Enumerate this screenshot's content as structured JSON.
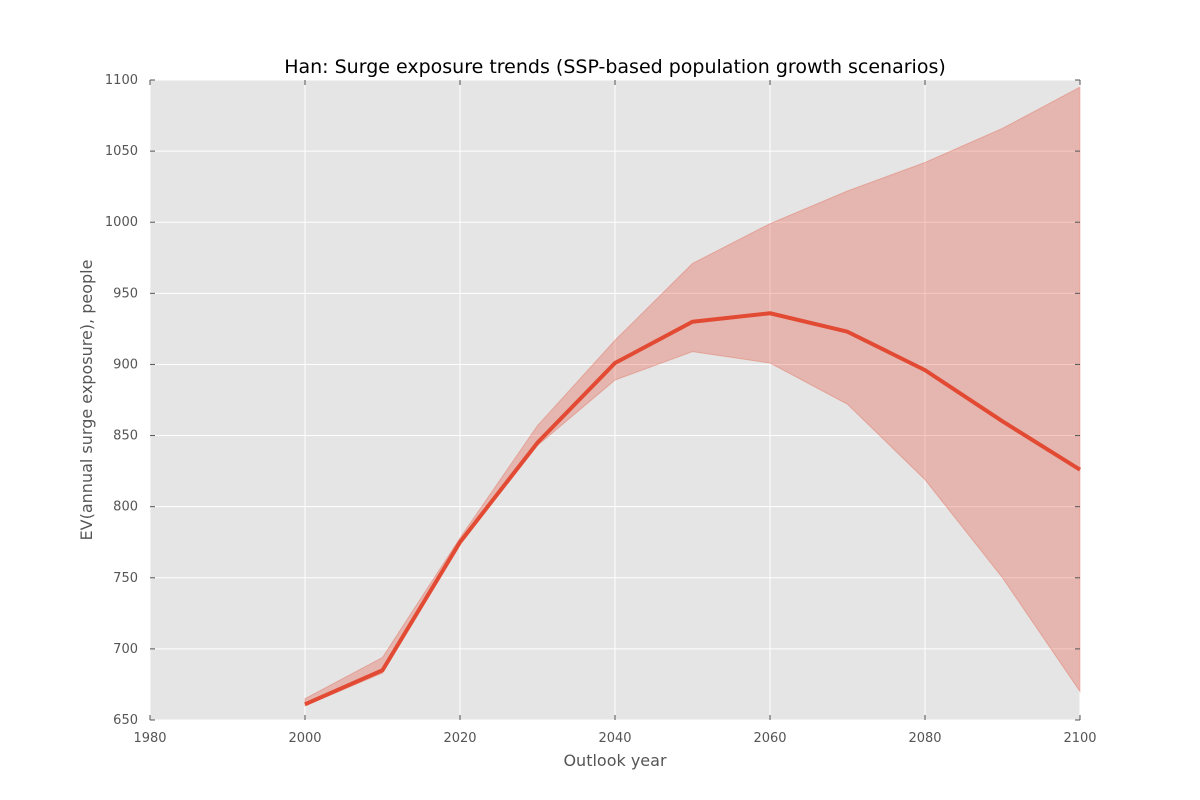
{
  "chart_data": {
    "type": "line",
    "title": "Han: Surge exposure trends (SSP-based population growth scenarios)",
    "xlabel": "Outlook year",
    "ylabel": "EV(annual surge exposure), people",
    "xlim": [
      1980,
      2100
    ],
    "ylim": [
      650,
      1100
    ],
    "xticks": [
      "1980",
      "2000",
      "2020",
      "2040",
      "2060",
      "2080",
      "2100"
    ],
    "yticks": [
      "650",
      "700",
      "750",
      "800",
      "850",
      "900",
      "950",
      "1000",
      "1050",
      "1100"
    ],
    "grid": true,
    "x": [
      2000,
      2010,
      2020,
      2030,
      2040,
      2050,
      2060,
      2070,
      2080,
      2090,
      2100
    ],
    "series": [
      {
        "values": [
          661,
          685,
          775,
          845,
          901,
          930,
          936,
          923,
          896,
          860,
          826
        ],
        "lower": [
          660,
          683,
          774,
          843,
          889,
          909,
          901,
          872,
          819,
          750,
          670
        ],
        "upper": [
          665,
          694,
          778,
          857,
          917,
          971,
          999,
          1022,
          1042,
          1066,
          1095
        ],
        "color": "#e24a33",
        "band_color": "#e24a33"
      }
    ],
    "background_color": "#e5e5e5"
  }
}
